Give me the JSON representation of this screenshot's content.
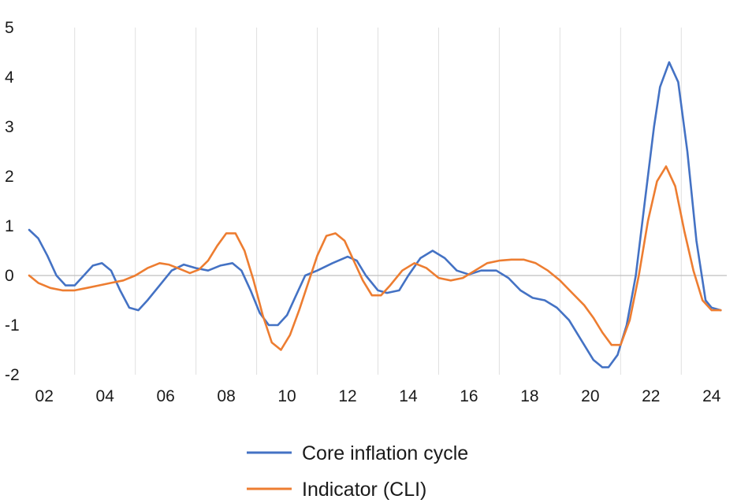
{
  "chart_data": {
    "type": "line",
    "title": "",
    "xlabel": "",
    "ylabel": "",
    "xlim": [
      2001.5,
      2024.5
    ],
    "ylim": [
      -2,
      5
    ],
    "grid": "vertical",
    "legend_position": "bottom",
    "x_tick_labels": [
      "02",
      "04",
      "06",
      "08",
      "10",
      "12",
      "14",
      "16",
      "18",
      "20",
      "22",
      "24"
    ],
    "y_tick_labels": [
      "5",
      "4",
      "3",
      "2",
      "1",
      "0",
      "-1",
      "-2"
    ],
    "colors": {
      "core": "#4472c4",
      "cli": "#ed7d31",
      "grid": "#e0e0e0",
      "zero_line": "#bfbfbf"
    },
    "series": [
      {
        "name": "Core inflation cycle",
        "color": "#4472c4",
        "x": [
          2001.5,
          2001.8,
          2002.1,
          2002.4,
          2002.7,
          2003.0,
          2003.3,
          2003.6,
          2003.9,
          2004.2,
          2004.5,
          2004.8,
          2005.1,
          2005.4,
          2005.8,
          2006.2,
          2006.6,
          2007.0,
          2007.4,
          2007.8,
          2008.2,
          2008.5,
          2008.8,
          2009.1,
          2009.4,
          2009.7,
          2010.0,
          2010.3,
          2010.6,
          2011.0,
          2011.5,
          2012.0,
          2012.3,
          2012.6,
          2013.0,
          2013.3,
          2013.7,
          2014.0,
          2014.4,
          2014.8,
          2015.2,
          2015.6,
          2016.0,
          2016.4,
          2016.9,
          2017.3,
          2017.7,
          2018.1,
          2018.5,
          2018.9,
          2019.3,
          2019.7,
          2020.1,
          2020.4,
          2020.6,
          2020.9,
          2021.2,
          2021.5,
          2021.8,
          2022.1,
          2022.3,
          2022.6,
          2022.9,
          2023.2,
          2023.5,
          2023.8,
          2024.0,
          2024.3
        ],
        "y": [
          0.92,
          0.75,
          0.4,
          0.0,
          -0.2,
          -0.2,
          0.0,
          0.2,
          0.25,
          0.1,
          -0.3,
          -0.65,
          -0.7,
          -0.5,
          -0.2,
          0.1,
          0.22,
          0.15,
          0.1,
          0.2,
          0.25,
          0.1,
          -0.3,
          -0.75,
          -1.0,
          -1.0,
          -0.8,
          -0.4,
          0.0,
          0.1,
          0.25,
          0.38,
          0.3,
          0.0,
          -0.3,
          -0.35,
          -0.3,
          0.0,
          0.35,
          0.5,
          0.35,
          0.1,
          0.02,
          0.1,
          0.1,
          -0.05,
          -0.3,
          -0.45,
          -0.5,
          -0.65,
          -0.9,
          -1.3,
          -1.7,
          -1.85,
          -1.85,
          -1.6,
          -1.0,
          0.0,
          1.5,
          3.0,
          3.8,
          4.3,
          3.9,
          2.5,
          0.7,
          -0.5,
          -0.65,
          -0.7
        ]
      },
      {
        "name": "Indicator (CLI)",
        "color": "#ed7d31",
        "x": [
          2001.5,
          2001.8,
          2002.2,
          2002.6,
          2003.0,
          2003.4,
          2003.8,
          2004.2,
          2004.6,
          2005.0,
          2005.4,
          2005.8,
          2006.1,
          2006.4,
          2006.8,
          2007.1,
          2007.4,
          2007.7,
          2008.0,
          2008.3,
          2008.6,
          2008.9,
          2009.2,
          2009.5,
          2009.8,
          2010.1,
          2010.4,
          2010.7,
          2011.0,
          2011.3,
          2011.6,
          2011.9,
          2012.2,
          2012.5,
          2012.8,
          2013.1,
          2013.4,
          2013.8,
          2014.2,
          2014.6,
          2015.0,
          2015.4,
          2015.8,
          2016.2,
          2016.6,
          2017.0,
          2017.4,
          2017.8,
          2018.2,
          2018.6,
          2019.0,
          2019.4,
          2019.8,
          2020.1,
          2020.4,
          2020.7,
          2021.0,
          2021.3,
          2021.6,
          2021.9,
          2022.2,
          2022.5,
          2022.8,
          2023.1,
          2023.4,
          2023.7,
          2024.0,
          2024.3
        ],
        "y": [
          0.0,
          -0.15,
          -0.25,
          -0.3,
          -0.3,
          -0.25,
          -0.2,
          -0.15,
          -0.1,
          0.0,
          0.15,
          0.25,
          0.22,
          0.15,
          0.05,
          0.12,
          0.3,
          0.6,
          0.85,
          0.85,
          0.5,
          -0.1,
          -0.8,
          -1.35,
          -1.5,
          -1.2,
          -0.7,
          -0.15,
          0.4,
          0.8,
          0.85,
          0.7,
          0.3,
          -0.1,
          -0.4,
          -0.4,
          -0.2,
          0.1,
          0.25,
          0.15,
          -0.05,
          -0.1,
          -0.05,
          0.1,
          0.25,
          0.3,
          0.32,
          0.32,
          0.25,
          0.1,
          -0.1,
          -0.35,
          -0.6,
          -0.85,
          -1.15,
          -1.4,
          -1.4,
          -0.9,
          0.0,
          1.1,
          1.9,
          2.2,
          1.8,
          0.9,
          0.1,
          -0.5,
          -0.7,
          -0.7
        ]
      }
    ]
  }
}
